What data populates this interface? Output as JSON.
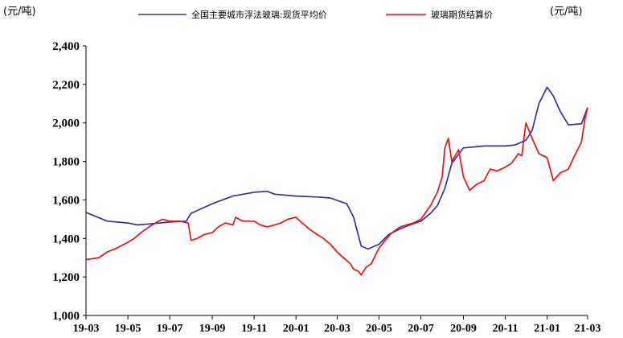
{
  "chart_data": {
    "type": "line",
    "unit_left": "(元/吨)",
    "unit_right": "(元/吨)",
    "ylim": [
      1000,
      2400
    ],
    "yticks": [
      "1,000",
      "1,200",
      "1,400",
      "1,600",
      "1,800",
      "2,000",
      "2,200",
      "2,400"
    ],
    "xlim": [
      "19-03",
      "21-03"
    ],
    "xticks": [
      "19-03",
      "19-05",
      "19-07",
      "19-09",
      "19-11",
      "20-01",
      "20-03",
      "20-05",
      "20-07",
      "20-09",
      "20-11",
      "21-01",
      "21-03"
    ],
    "grid": false,
    "legend_position": "top",
    "series": [
      {
        "name": "全国主要城市浮法玻璃:现货平均价",
        "color": "#3333a0",
        "x": [
          "2019-03-01",
          "2019-04-01",
          "2019-05-01",
          "2019-05-15",
          "2019-06-01",
          "2019-07-01",
          "2019-07-25",
          "2019-08-01",
          "2019-08-10",
          "2019-09-01",
          "2019-10-01",
          "2019-11-01",
          "2019-11-20",
          "2019-12-01",
          "2020-01-01",
          "2020-02-01",
          "2020-02-20",
          "2020-03-15",
          "2020-03-25",
          "2020-04-05",
          "2020-04-15",
          "2020-05-01",
          "2020-05-15",
          "2020-06-01",
          "2020-06-15",
          "2020-07-01",
          "2020-07-15",
          "2020-07-25",
          "2020-08-05",
          "2020-08-15",
          "2020-09-01",
          "2020-10-01",
          "2020-11-01",
          "2020-11-15",
          "2020-12-01",
          "2020-12-10",
          "2020-12-20",
          "2021-01-01",
          "2021-01-10",
          "2021-01-20",
          "2021-02-01",
          "2021-02-20",
          "2021-03-01"
        ],
        "values": [
          1535,
          1490,
          1480,
          1470,
          1475,
          1485,
          1490,
          1530,
          1545,
          1580,
          1620,
          1640,
          1645,
          1630,
          1620,
          1615,
          1610,
          1580,
          1510,
          1360,
          1345,
          1370,
          1420,
          1450,
          1470,
          1490,
          1530,
          1570,
          1660,
          1790,
          1870,
          1880,
          1880,
          1885,
          1910,
          1960,
          2100,
          2185,
          2140,
          2060,
          1990,
          1995,
          2080
        ]
      },
      {
        "name": "玻璃期货结算价",
        "color": "#ee1111",
        "x": [
          "2019-03-01",
          "2019-03-20",
          "2019-04-01",
          "2019-04-15",
          "2019-04-20",
          "2019-05-01",
          "2019-05-10",
          "2019-05-20",
          "2019-06-01",
          "2019-06-10",
          "2019-06-20",
          "2019-07-01",
          "2019-07-15",
          "2019-07-28",
          "2019-08-01",
          "2019-08-10",
          "2019-08-20",
          "2019-09-01",
          "2019-09-10",
          "2019-09-20",
          "2019-10-01",
          "2019-10-05",
          "2019-10-15",
          "2019-11-01",
          "2019-11-10",
          "2019-11-20",
          "2019-12-01",
          "2019-12-10",
          "2019-12-20",
          "2020-01-01",
          "2020-01-10",
          "2020-01-20",
          "2020-02-01",
          "2020-02-10",
          "2020-02-20",
          "2020-03-01",
          "2020-03-10",
          "2020-03-20",
          "2020-03-25",
          "2020-04-01",
          "2020-04-05",
          "2020-04-12",
          "2020-04-20",
          "2020-05-01",
          "2020-05-10",
          "2020-05-20",
          "2020-06-01",
          "2020-06-10",
          "2020-06-20",
          "2020-07-01",
          "2020-07-15",
          "2020-07-25",
          "2020-08-01",
          "2020-08-05",
          "2020-08-10",
          "2020-08-15",
          "2020-08-25",
          "2020-09-01",
          "2020-09-10",
          "2020-09-20",
          "2020-10-01",
          "2020-10-10",
          "2020-10-20",
          "2020-11-01",
          "2020-11-10",
          "2020-11-20",
          "2020-11-25",
          "2020-12-01",
          "2020-12-10",
          "2020-12-20",
          "2021-01-01",
          "2021-01-10",
          "2021-01-20",
          "2021-02-01",
          "2021-02-10",
          "2021-02-20",
          "2021-02-25",
          "2021-03-01"
        ],
        "values": [
          1290,
          1300,
          1330,
          1350,
          1360,
          1380,
          1400,
          1430,
          1460,
          1480,
          1500,
          1490,
          1490,
          1480,
          1390,
          1400,
          1420,
          1430,
          1460,
          1480,
          1470,
          1510,
          1490,
          1490,
          1470,
          1460,
          1470,
          1480,
          1500,
          1510,
          1480,
          1450,
          1420,
          1400,
          1370,
          1330,
          1300,
          1270,
          1240,
          1230,
          1210,
          1250,
          1270,
          1350,
          1390,
          1430,
          1460,
          1470,
          1480,
          1500,
          1570,
          1640,
          1720,
          1870,
          1920,
          1800,
          1860,
          1720,
          1650,
          1680,
          1700,
          1760,
          1750,
          1770,
          1790,
          1840,
          1830,
          2000,
          1920,
          1840,
          1820,
          1700,
          1740,
          1760,
          1830,
          1900,
          2020,
          2080
        ]
      }
    ]
  }
}
